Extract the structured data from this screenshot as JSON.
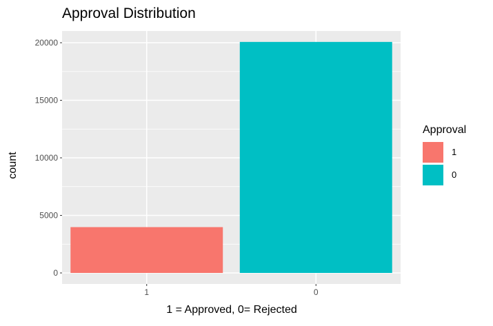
{
  "chart_data": {
    "type": "bar",
    "title": "Approval Distribution",
    "xlabel": "1 = Approved, 0= Rejected",
    "ylabel": "count",
    "categories": [
      "1",
      "0"
    ],
    "values": [
      3980,
      20070
    ],
    "colors": [
      "#F8766D",
      "#00BFC4"
    ],
    "ylim": [
      0,
      21000
    ],
    "yticks": [
      0,
      5000,
      10000,
      15000,
      20000
    ],
    "grid": true,
    "background": "#EBEBEB",
    "legend": {
      "title": "Approval",
      "position": "right",
      "entries": [
        {
          "label": "1",
          "color": "#F8766D"
        },
        {
          "label": "0",
          "color": "#00BFC4"
        }
      ]
    }
  }
}
